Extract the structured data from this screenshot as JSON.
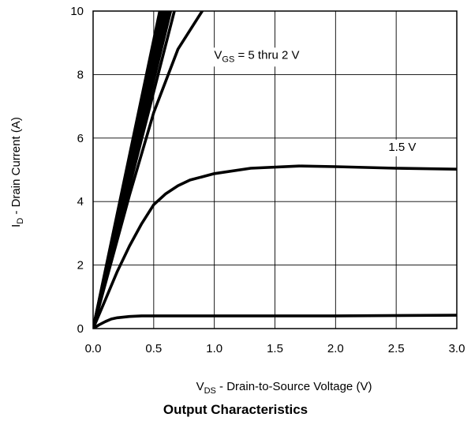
{
  "chart_data": {
    "type": "line",
    "title": "Output Characteristics",
    "xlabel": {
      "main": "V",
      "sub": "DS",
      "rest": " - Drain-to-Source Voltage (V)"
    },
    "ylabel": {
      "main": "I",
      "sub": "D",
      "rest": " - Drain Current (A)"
    },
    "xlim": [
      0,
      3.0
    ],
    "ylim": [
      0,
      10
    ],
    "x_ticks": [
      "0.0",
      "0.5",
      "1.0",
      "1.5",
      "2.0",
      "2.5",
      "3.0"
    ],
    "y_ticks": [
      "0",
      "2",
      "4",
      "6",
      "8",
      "10"
    ],
    "grid": true,
    "annotations": [
      {
        "label_main": "V",
        "label_sub": "GS",
        "label_rest": " = 5 thru 2 V",
        "x": 1.35,
        "y": 8.5
      },
      {
        "label_main": "1.5 V",
        "label_sub": "",
        "label_rest": "",
        "x": 2.55,
        "y": 5.6
      }
    ],
    "series": [
      {
        "x": [
          0,
          0.55
        ],
        "y": [
          0,
          10
        ]
      },
      {
        "x": [
          0,
          0.56
        ],
        "y": [
          0,
          10
        ]
      },
      {
        "x": [
          0,
          0.57
        ],
        "y": [
          0,
          10
        ]
      },
      {
        "x": [
          0,
          0.58
        ],
        "y": [
          0,
          10
        ]
      },
      {
        "x": [
          0,
          0.59
        ],
        "y": [
          0,
          10
        ]
      },
      {
        "x": [
          0,
          0.6
        ],
        "y": [
          0,
          10
        ]
      },
      {
        "x": [
          0,
          0.6
        ],
        "y": [
          0,
          10
        ]
      },
      {
        "x": [
          0,
          0.62
        ],
        "y": [
          0,
          10
        ]
      },
      {
        "x": [
          0,
          0.64
        ],
        "y": [
          0,
          10
        ]
      },
      {
        "x": [
          0,
          0.67
        ],
        "y": [
          0,
          10
        ]
      },
      {
        "x": [
          0,
          0.3,
          0.5,
          0.7,
          0.9
        ],
        "y": [
          0,
          4.2,
          6.8,
          8.8,
          10
        ]
      },
      {
        "x": [
          0,
          0.1,
          0.2,
          0.3,
          0.4,
          0.5,
          0.6,
          0.7,
          0.8,
          1.0,
          1.3,
          1.7,
          2.0,
          2.5,
          3.0
        ],
        "y": [
          0,
          0.9,
          1.8,
          2.6,
          3.3,
          3.9,
          4.25,
          4.5,
          4.68,
          4.88,
          5.05,
          5.12,
          5.1,
          5.05,
          5.02
        ]
      },
      {
        "x": [
          0,
          0.05,
          0.1,
          0.15,
          0.2,
          0.3,
          0.4,
          1.0,
          2.0,
          3.0
        ],
        "y": [
          0,
          0.12,
          0.22,
          0.3,
          0.34,
          0.38,
          0.4,
          0.4,
          0.4,
          0.42
        ]
      }
    ]
  }
}
